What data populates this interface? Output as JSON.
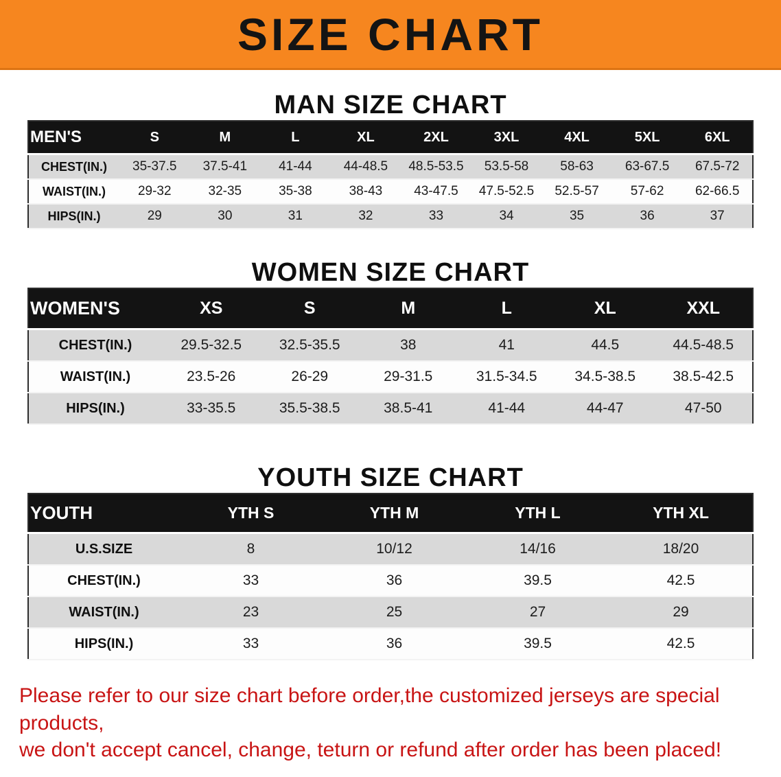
{
  "page": {
    "title": "SIZE CHART",
    "banner_color": "#f6861f",
    "accent_red": "#c81414"
  },
  "sections": [
    {
      "heading": "MAN SIZE CHART",
      "table": {
        "label_header": "MEN'S",
        "columns": [
          "S",
          "M",
          "L",
          "XL",
          "2XL",
          "3XL",
          "4XL",
          "5XL",
          "6XL"
        ],
        "rows": [
          {
            "label": "CHEST(IN.)",
            "values": [
              "35-37.5",
              "37.5-41",
              "41-44",
              "44-48.5",
              "48.5-53.5",
              "53.5-58",
              "58-63",
              "63-67.5",
              "67.5-72"
            ]
          },
          {
            "label": "WAIST(IN.)",
            "values": [
              "29-32",
              "32-35",
              "35-38",
              "38-43",
              "43-47.5",
              "47.5-52.5",
              "52.5-57",
              "57-62",
              "62-66.5"
            ]
          },
          {
            "label": "HIPS(IN.)",
            "values": [
              "29",
              "30",
              "31",
              "32",
              "33",
              "34",
              "35",
              "36",
              "37"
            ]
          }
        ]
      }
    },
    {
      "heading": "WOMEN SIZE CHART",
      "table": {
        "label_header": "WOMEN'S",
        "columns": [
          "XS",
          "S",
          "M",
          "L",
          "XL",
          "XXL"
        ],
        "rows": [
          {
            "label": "CHEST(IN.)",
            "values": [
              "29.5-32.5",
              "32.5-35.5",
              "38",
              "41",
              "44.5",
              "44.5-48.5"
            ]
          },
          {
            "label": "WAIST(IN.)",
            "values": [
              "23.5-26",
              "26-29",
              "29-31.5",
              "31.5-34.5",
              "34.5-38.5",
              "38.5-42.5"
            ]
          },
          {
            "label": "HIPS(IN.)",
            "values": [
              "33-35.5",
              "35.5-38.5",
              "38.5-41",
              "41-44",
              "44-47",
              "47-50"
            ]
          }
        ]
      }
    },
    {
      "heading": "YOUTH SIZE CHART",
      "table": {
        "label_header": "YOUTH",
        "columns": [
          "YTH S",
          "YTH M",
          "YTH L",
          "YTH XL"
        ],
        "rows": [
          {
            "label": "U.S.SIZE",
            "values": [
              "8",
              "10/12",
              "14/16",
              "18/20"
            ]
          },
          {
            "label": "CHEST(IN.)",
            "values": [
              "33",
              "36",
              "39.5",
              "42.5"
            ]
          },
          {
            "label": "WAIST(IN.)",
            "values": [
              "23",
              "25",
              "27",
              "29"
            ]
          },
          {
            "label": "HIPS(IN.)",
            "values": [
              "33",
              "36",
              "39.5",
              "42.5"
            ]
          }
        ]
      }
    }
  ],
  "footer": {
    "line1": "Please refer to our size chart before order,the customized jerseys are special products,",
    "line2": "we don't accept cancel, change, teturn or refund after order has been placed!"
  }
}
